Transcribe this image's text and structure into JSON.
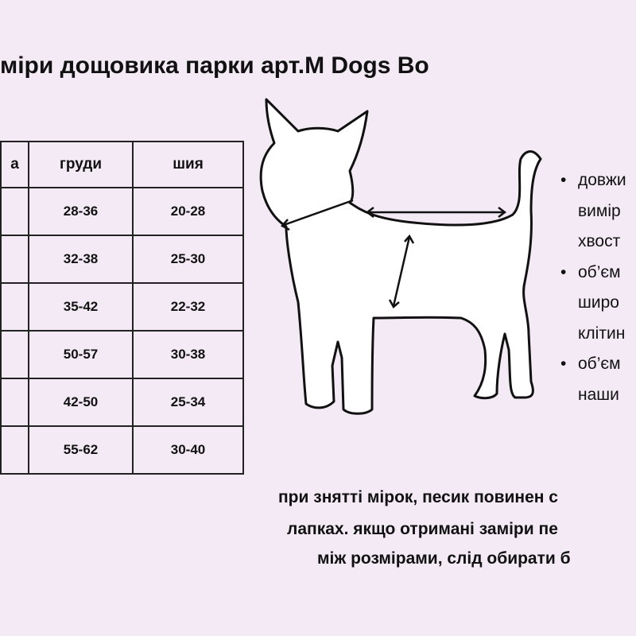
{
  "title": "міри дощовика парки арт.M Dogs Bo",
  "table": {
    "headers": [
      "а",
      "груди",
      "шия"
    ],
    "rows": [
      [
        "",
        "28-36",
        "20-28"
      ],
      [
        "",
        "32-38",
        "25-30"
      ],
      [
        "",
        "35-42",
        "22-32"
      ],
      [
        "",
        "50-57",
        "30-38"
      ],
      [
        "",
        "42-50",
        "25-34"
      ],
      [
        "",
        "55-62",
        "30-40"
      ]
    ]
  },
  "bullets": [
    {
      "lines": [
        "довжи",
        "вимір",
        "хвост"
      ]
    },
    {
      "lines": [
        "об’єм",
        "широ",
        "клітин"
      ]
    },
    {
      "lines": [
        "об’єм",
        "наши"
      ]
    }
  ],
  "note": [
    "при знятті мірок, песик повинен с",
    "лапках. якщо отримані заміри пе",
    "між розмірами, слід обирати б"
  ],
  "colors": {
    "background": "#f3eaf5",
    "text": "#111111"
  }
}
